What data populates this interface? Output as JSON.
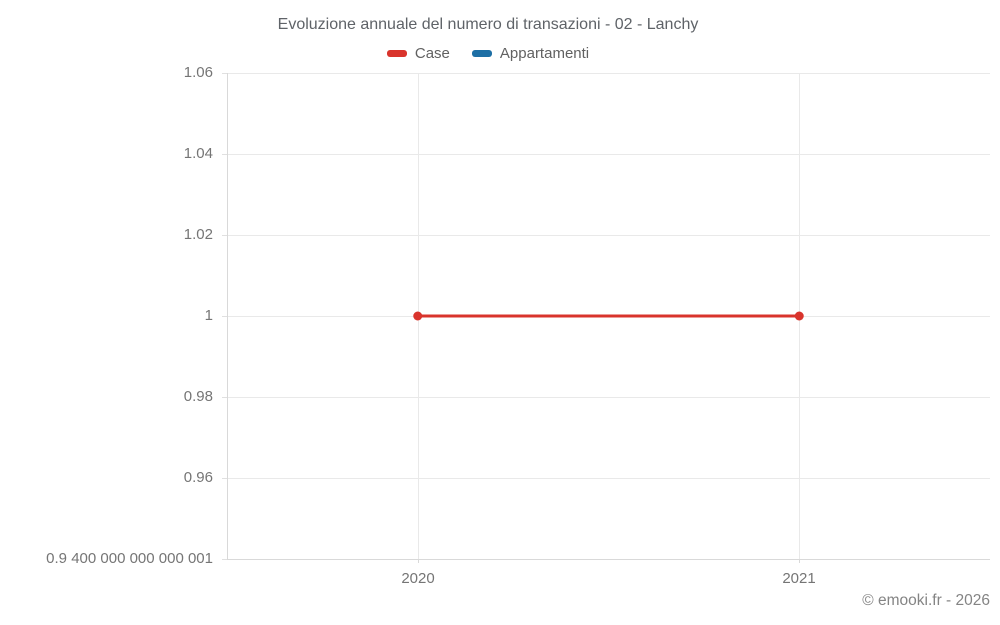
{
  "title": "Evoluzione annuale del numero di transazioni - 02 - Lanchy",
  "legend": {
    "items": [
      {
        "label": "Case",
        "color": "#d9342c"
      },
      {
        "label": "Appartamenti",
        "color": "#1d6fa5"
      }
    ]
  },
  "footer": {
    "copyright": "© emooki.fr - 2026"
  },
  "chart_data": {
    "type": "line",
    "title": "Evoluzione annuale del numero di transazioni - 02 - Lanchy",
    "categories": [
      "2020",
      "2021"
    ],
    "series": [
      {
        "name": "Case",
        "color": "#d9342c",
        "values": [
          1,
          1
        ]
      },
      {
        "name": "Appartamenti",
        "color": "#1d6fa5",
        "values": []
      }
    ],
    "xlabel": "",
    "ylabel": "",
    "ylim": [
      0.9400000000000001,
      1.06
    ],
    "y_ticks": [
      {
        "value": 1.06,
        "label": "1.06"
      },
      {
        "value": 1.04,
        "label": "1.04"
      },
      {
        "value": 1.02,
        "label": "1.02"
      },
      {
        "value": 1,
        "label": "1"
      },
      {
        "value": 0.98,
        "label": "0.98"
      },
      {
        "value": 0.96,
        "label": "0.96"
      },
      {
        "value": 0.9400000000000001,
        "label": "0.9 400 000 000 000 001"
      }
    ],
    "grid": true,
    "legend_position": "top",
    "grid_color": "#e9e9e9",
    "axis_color": "#d9d9d9",
    "marker_radius": 4.5,
    "line_width": 3
  }
}
